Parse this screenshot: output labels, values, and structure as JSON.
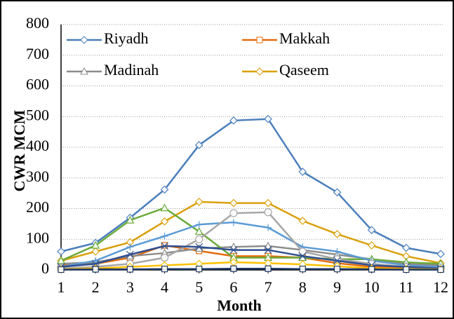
{
  "chart_data": {
    "type": "line",
    "xlabel": "Month",
    "ylabel": "CWR MCM",
    "x": [
      1,
      2,
      3,
      4,
      5,
      6,
      7,
      8,
      9,
      10,
      11,
      12
    ],
    "xlim": [
      1,
      12
    ],
    "xticks": [
      1,
      2,
      3,
      4,
      5,
      6,
      7,
      8,
      9,
      10,
      11,
      12
    ],
    "ylim": [
      0,
      800
    ],
    "yticks": [
      0,
      100,
      200,
      300,
      400,
      500,
      600,
      700,
      800
    ],
    "grid": true,
    "series": [
      {
        "name": "Riyadh",
        "color": "#4a7ebb",
        "marker": "diamond",
        "values": [
          60,
          88,
          170,
          262,
          407,
          487,
          492,
          320,
          253,
          130,
          72,
          52
        ]
      },
      {
        "name": "Makkah",
        "color": "#e46c0a",
        "marker": "square",
        "values": [
          15,
          20,
          40,
          80,
          62,
          45,
          45,
          40,
          22,
          10,
          8,
          5
        ]
      },
      {
        "name": "Madinah",
        "color": "#8c8c8c",
        "marker": "triangle",
        "values": [
          20,
          25,
          45,
          55,
          70,
          75,
          78,
          65,
          50,
          35,
          20,
          15
        ]
      },
      {
        "name": "Qaseem",
        "color": "#d9a00c",
        "marker": "diamond",
        "values": [
          30,
          60,
          90,
          158,
          222,
          218,
          218,
          160,
          117,
          80,
          45,
          22
        ]
      },
      {
        "color": "#6aaa3a",
        "marker": "triangle",
        "values": [
          30,
          80,
          162,
          202,
          125,
          40,
          40,
          40,
          35,
          35,
          25,
          20
        ]
      },
      {
        "color": "#5b9bd5",
        "marker": "plus",
        "values": [
          10,
          30,
          75,
          110,
          148,
          155,
          138,
          75,
          60,
          30,
          15,
          10
        ]
      },
      {
        "color": "#a6a6a6",
        "marker": "circle",
        "values": [
          5,
          10,
          20,
          40,
          100,
          185,
          188,
          60,
          35,
          20,
          10,
          5
        ]
      },
      {
        "color": "#2f4f8f",
        "marker": "x",
        "values": [
          10,
          20,
          50,
          78,
          75,
          65,
          65,
          45,
          30,
          15,
          10,
          5
        ]
      },
      {
        "color": "#ffc000",
        "marker": "diamond",
        "values": [
          2,
          5,
          10,
          15,
          20,
          25,
          22,
          18,
          12,
          5,
          3,
          2
        ]
      },
      {
        "color": "#1f3864",
        "marker": "square",
        "values": [
          1,
          2,
          2,
          3,
          3,
          4,
          4,
          3,
          3,
          2,
          1,
          1
        ]
      }
    ]
  }
}
